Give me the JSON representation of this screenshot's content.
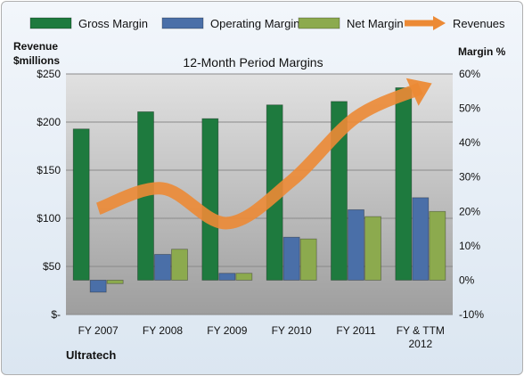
{
  "company_label": "Ultratech",
  "chart_data": {
    "type": "bar",
    "title": "12-Month Period Margins",
    "ylabel_left": [
      "Revenue",
      "$millions"
    ],
    "ylabel_right": "Margin %",
    "categories": [
      "FY 2007",
      "FY 2008",
      "FY 2009",
      "FY 2010",
      "FY 2011",
      "FY & TTM|2012"
    ],
    "left_axis": {
      "min": 0,
      "max": 250,
      "step": 50,
      "tick_labels": [
        "$-",
        "$50",
        "$100",
        "$150",
        "$200",
        "$250"
      ]
    },
    "right_axis": {
      "min": -10,
      "max": 60,
      "step": 10,
      "tick_labels": [
        "-10%",
        "0%",
        "10%",
        "20%",
        "30%",
        "40%",
        "50%",
        "60%"
      ]
    },
    "series": [
      {
        "name": "Gross Margin",
        "axis": "right",
        "kind": "bar",
        "color": "#1e7a3e",
        "values": [
          44,
          49,
          47,
          51,
          52,
          56
        ]
      },
      {
        "name": "Operating Margin",
        "axis": "right",
        "kind": "bar",
        "color": "#4a6fa8",
        "values": [
          -3.5,
          7.5,
          2,
          12.5,
          20.5,
          24
        ]
      },
      {
        "name": "Net Margin",
        "axis": "right",
        "kind": "bar",
        "color": "#8caa4e",
        "values": [
          -1,
          9,
          2,
          12,
          18.5,
          20
        ]
      },
      {
        "name": "Revenues",
        "axis": "left",
        "kind": "line",
        "color": "#ec8a35",
        "values": [
          110,
          131,
          95,
          139,
          205,
          235
        ]
      }
    ],
    "legend_position": "top",
    "grid": true
  }
}
